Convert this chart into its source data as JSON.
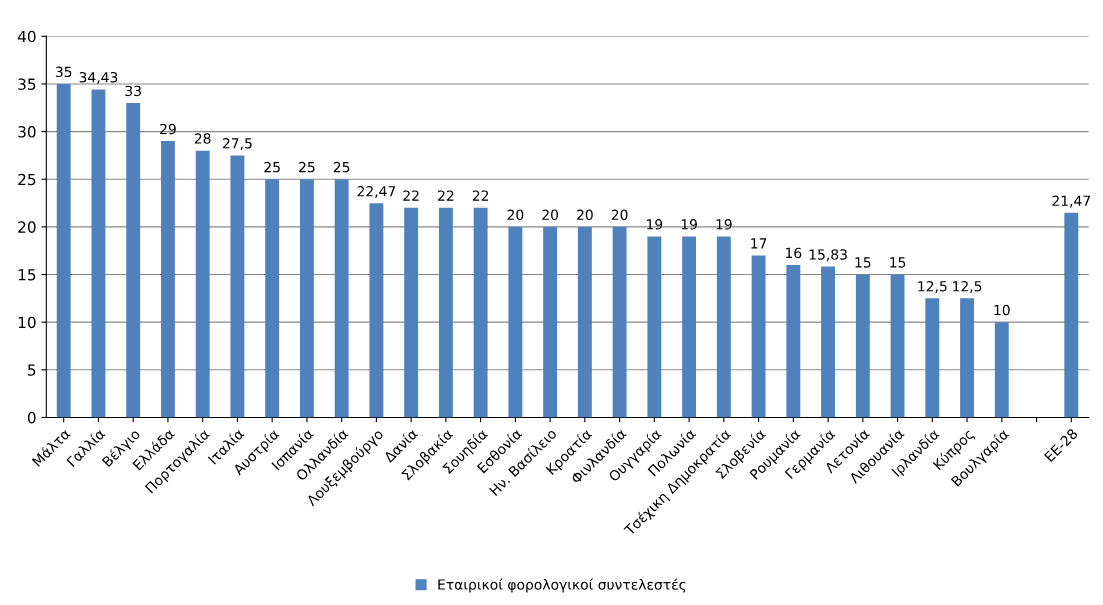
{
  "chart_data": {
    "type": "bar",
    "categories": [
      "Μάλτα",
      "Γαλλία",
      "Βέλγιο",
      "Ελλάδα",
      "Πορτογαλία",
      "Ιταλία",
      "Αυστρία",
      "Ισπανία",
      "Ολλανδία",
      "Λουξεμβούργο",
      "Δανία",
      "Σλοβακία",
      "Σουηδία",
      "Εσθονία",
      "Ην. Βασίλειο",
      "Κροατία",
      "Φινλανδία",
      "Ουγγαρία",
      "Πολωνία",
      "Τσέχικη Δημοκρατία",
      "Σλοβενία",
      "Ρουμανία",
      "Γερμανία",
      "Λετονία",
      "Λιθουανία",
      "Ιρλανδία",
      "Κύπρος",
      "Βουλγαρία",
      null,
      "ΕΕ-28"
    ],
    "series": [
      {
        "name": "Εταιρικοί φορολογικοί συντελεστές",
        "color": "#4f81bd",
        "values": [
          35,
          34.43,
          33,
          29,
          28,
          27.5,
          25,
          25,
          25,
          22.47,
          22,
          22,
          22,
          20,
          20,
          20,
          20,
          19,
          19,
          19,
          17,
          16,
          15.83,
          15,
          15,
          12.5,
          12.5,
          10,
          null,
          21.47
        ],
        "value_labels": [
          "35",
          "34,43",
          "33",
          "29",
          "28",
          "27,5",
          "25",
          "25",
          "25",
          "22,47",
          "22",
          "22",
          "22",
          "20",
          "20",
          "20",
          "20",
          "19",
          "19",
          "19",
          "17",
          "16",
          "15,83",
          "15",
          "15",
          "12,5",
          "12,5",
          "10",
          null,
          "21,47"
        ]
      }
    ],
    "ylim": [
      0,
      40
    ],
    "yticks": [
      0,
      5,
      10,
      15,
      20,
      25,
      30,
      35,
      40
    ],
    "grid": "y",
    "legend": "bottom"
  }
}
